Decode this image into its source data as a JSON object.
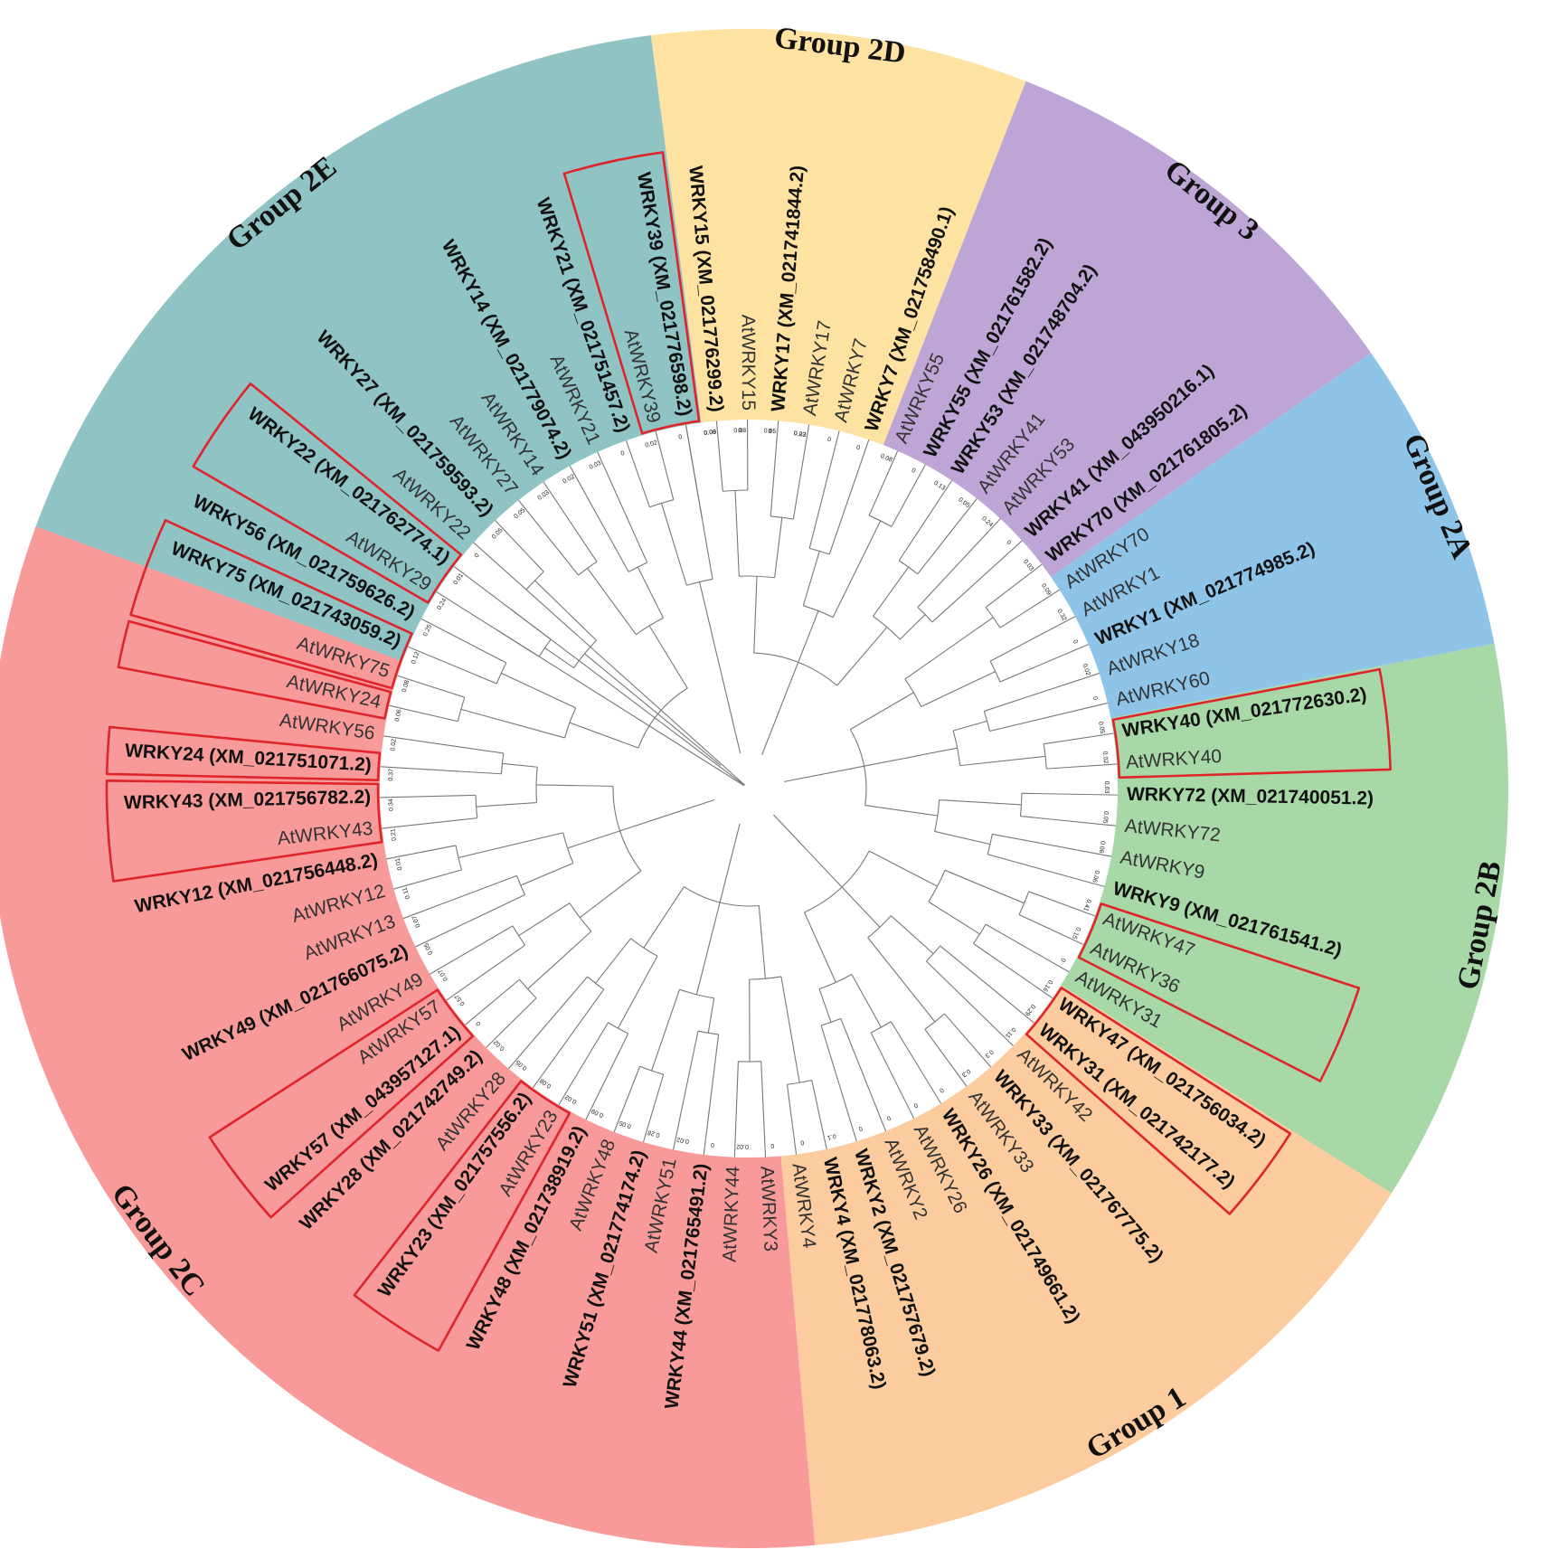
{
  "figure": {
    "groups": [
      {
        "label": "Group 2D",
        "color": "#fde2a2",
        "start": 0
      },
      {
        "label": "Group 3",
        "color": "#bda6d6",
        "start": 6
      },
      {
        "label": "Group 2A",
        "color": "#8ec4e8",
        "start": 13
      },
      {
        "label": "Group 2B",
        "color": "#a8d8a8",
        "start": 18
      },
      {
        "label": "Group 1",
        "color": "#fccb9e",
        "start": 27
      },
      {
        "label": "Group 2C",
        "color": "#f99a9a",
        "start": 38
      },
      {
        "label": "Group 2E",
        "color": "#8fc3c4",
        "start": 62
      }
    ],
    "leaves": [
      {
        "label": "WRKY15 (XM_021776299.2)",
        "bold": true
      },
      {
        "label": "AtWRKY15",
        "bold": false
      },
      {
        "label": "WRKY17 (XM_021741844.2)",
        "bold": true
      },
      {
        "label": "AtWRKY17",
        "bold": false
      },
      {
        "label": "AtWRKY7",
        "bold": false
      },
      {
        "label": "WRKY7 (XM_021758490.1)",
        "bold": true
      },
      {
        "label": "AtWRKY55",
        "bold": false
      },
      {
        "label": "WRKY55 (XM_021761582.2)",
        "bold": true
      },
      {
        "label": "WRKY53 (XM_021748704.2)",
        "bold": true
      },
      {
        "label": "AtWRKY41",
        "bold": false
      },
      {
        "label": "AtWRKY53",
        "bold": false
      },
      {
        "label": "WRKY41 (XM_043950216.1)",
        "bold": true
      },
      {
        "label": "WRKY70 (XM_021761805.2)",
        "bold": true
      },
      {
        "label": "AtWRKY70",
        "bold": false
      },
      {
        "label": "AtWRKY1",
        "bold": false
      },
      {
        "label": "WRKY1 (XM_021774985.2)",
        "bold": true
      },
      {
        "label": "AtWRKY18",
        "bold": false
      },
      {
        "label": "AtWRKY60",
        "bold": false
      },
      {
        "label": "WRKY40 (XM_021772630.2)",
        "bold": true
      },
      {
        "label": "AtWRKY40",
        "bold": false
      },
      {
        "label": "WRKY72 (XM_021740051.2)",
        "bold": true
      },
      {
        "label": "AtWRKY72",
        "bold": false
      },
      {
        "label": "AtWRKY9",
        "bold": false
      },
      {
        "label": "WRKY9 (XM_021761541.2)",
        "bold": true
      },
      {
        "label": "AtWRKY47",
        "bold": false
      },
      {
        "label": "AtWRKY36",
        "bold": false
      },
      {
        "label": "AtWRKY31",
        "bold": false
      },
      {
        "label": "WRKY47 (XM_021756034.2)",
        "bold": true
      },
      {
        "label": "WRKY31 (XM_021742177.2)",
        "bold": true
      },
      {
        "label": "AtWRKY42",
        "bold": false
      },
      {
        "label": "WRKY33 (XM_021767775.2)",
        "bold": true
      },
      {
        "label": "AtWRKY33",
        "bold": false
      },
      {
        "label": "WRKY26 (XM_021749661.2)",
        "bold": true
      },
      {
        "label": "AtWRKY26",
        "bold": false
      },
      {
        "label": "AtWRKY2",
        "bold": false
      },
      {
        "label": "WRKY2 (XM_021757679.2)",
        "bold": true
      },
      {
        "label": "WRKY4 (XM_021778063.2)",
        "bold": true
      },
      {
        "label": "AtWRKY4",
        "bold": false
      },
      {
        "label": "AtWRKY3",
        "bold": false
      },
      {
        "label": "AtWRKY44",
        "bold": false
      },
      {
        "label": "WRKY44 (XM_021765491.2)",
        "bold": true
      },
      {
        "label": "AtWRKY51",
        "bold": false
      },
      {
        "label": "WRKY51 (XM_021774174.2)",
        "bold": true
      },
      {
        "label": "AtWRKY48",
        "bold": false
      },
      {
        "label": "WRKY48 (XM_021738919.2)",
        "bold": true
      },
      {
        "label": "AtWRKY23",
        "bold": false
      },
      {
        "label": "WRKY23 (XM_021757556.2)",
        "bold": true
      },
      {
        "label": "AtWRKY28",
        "bold": false
      },
      {
        "label": "WRKY28 (XM_021742749.2)",
        "bold": true
      },
      {
        "label": "WRKY57 (XM_043957127.1)",
        "bold": true
      },
      {
        "label": "AtWRKY57",
        "bold": false
      },
      {
        "label": "AtWRKY49",
        "bold": false
      },
      {
        "label": "WRKY49 (XM_021766075.2)",
        "bold": true
      },
      {
        "label": "AtWRKY13",
        "bold": false
      },
      {
        "label": "AtWRKY12",
        "bold": false
      },
      {
        "label": "WRKY12 (XM_021756448.2)",
        "bold": true
      },
      {
        "label": "AtWRKY43",
        "bold": false
      },
      {
        "label": "WRKY43 (XM_021756782.2)",
        "bold": true
      },
      {
        "label": "WRKY24 (XM_021751071.2)",
        "bold": true
      },
      {
        "label": "AtWRKY56",
        "bold": false
      },
      {
        "label": "AtWRKY24",
        "bold": false
      },
      {
        "label": "AtWRKY75",
        "bold": false
      },
      {
        "label": "WRKY75 (XM_021743059.2)",
        "bold": true
      },
      {
        "label": "WRKY56 (XM_021759626.2)",
        "bold": true
      },
      {
        "label": "AtWRKY29",
        "bold": false
      },
      {
        "label": "WRKY22 (XM_021762774.1)",
        "bold": true
      },
      {
        "label": "AtWRKY22",
        "bold": false
      },
      {
        "label": "WRKY27 (XM_021759593.2)",
        "bold": true
      },
      {
        "label": "AtWRKY27",
        "bold": false
      },
      {
        "label": "AtWRKY14",
        "bold": false
      },
      {
        "label": "WRKY14 (XM_021779074.2)",
        "bold": true
      },
      {
        "label": "AtWRKY21",
        "bold": false
      },
      {
        "label": "WRKY21 (XM_021751457.2)",
        "bold": true
      },
      {
        "label": "AtWRKY39",
        "bold": false
      },
      {
        "label": "WRKY39 (XM_021776598.2)",
        "bold": true
      }
    ],
    "highlight_pairs": [
      [
        73,
        74
      ],
      [
        64,
        65
      ],
      [
        18,
        19
      ],
      [
        24,
        25
      ],
      [
        27,
        28
      ],
      [
        61,
        62
      ],
      [
        60,
        60
      ],
      [
        58,
        58
      ],
      [
        56,
        57
      ],
      [
        49,
        50
      ],
      [
        45,
        46
      ]
    ],
    "branch_lengths": [
      "0.08",
      "0",
      "0.05",
      "0.02",
      "0",
      "0",
      "0.08",
      "0",
      "0.13",
      "0.05",
      "0.24",
      "0",
      "0.03",
      "0.09",
      "0.32",
      "0",
      "0.02",
      "0",
      "0.05",
      "0.02",
      "0.03",
      "0.05",
      "0.06",
      "0.06",
      "0.41",
      "0.15",
      "0",
      "0.16",
      "0.29",
      "0.11",
      "0.3",
      "0.3",
      "0",
      "0",
      "0",
      "0",
      "0.1",
      "0",
      "0",
      "0.02",
      "0",
      "0.02",
      "0.28",
      "0.05",
      "0.09",
      "0.02",
      "0.08",
      "0.05",
      "0.02",
      "0",
      "0.57",
      "0.07",
      "0.05",
      "0.07",
      "0.11",
      "0.01",
      "0.21",
      "0.34",
      "0.37",
      "0.02",
      "0.06",
      "0.08",
      "0.12",
      "0.25",
      "0.24",
      "0.01",
      "0",
      "0.05",
      "0.05",
      "0.03",
      "0.02",
      "0.03",
      "0",
      "0.02",
      "0",
      "0.09",
      "0.08",
      "0",
      "0.23"
    ],
    "colors": {
      "highlight": "#e0242b",
      "branch": "#777777"
    }
  }
}
